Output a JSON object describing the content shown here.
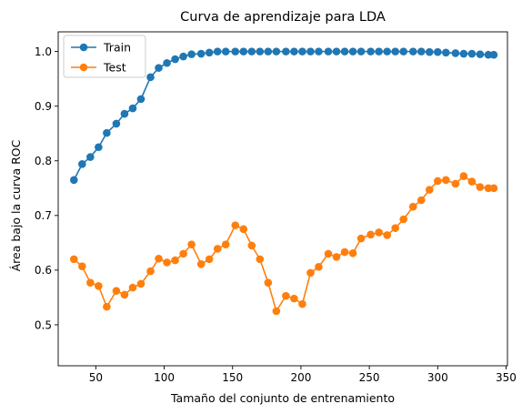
{
  "chart_data": {
    "type": "line",
    "title": "Curva de aprendizaje para LDA",
    "xlabel": "Tamaño del conjunto de entrenamiento",
    "ylabel": "Área bajo la curva ROC",
    "xlim": [
      22.5,
      351
    ],
    "ylim": [
      0.425,
      1.036
    ],
    "xticks": [
      50,
      100,
      150,
      200,
      250,
      300,
      350
    ],
    "yticks": [
      0.5,
      0.6,
      0.7,
      0.8,
      0.9,
      1.0
    ],
    "grid": false,
    "legend_position": "upper-left",
    "x": [
      34,
      40,
      46,
      52,
      58,
      65,
      71,
      77,
      83,
      90,
      96,
      102,
      108,
      114,
      120,
      127,
      133,
      139,
      145,
      152,
      158,
      164,
      170,
      176,
      182,
      189,
      195,
      201,
      207,
      213,
      220,
      226,
      232,
      238,
      244,
      251,
      257,
      263,
      269,
      275,
      282,
      288,
      294,
      300,
      306,
      313,
      319,
      325,
      331,
      337,
      341
    ],
    "series": [
      {
        "name": "Train",
        "color": "#1f77b4",
        "values": [
          0.765,
          0.794,
          0.807,
          0.825,
          0.851,
          0.868,
          0.886,
          0.896,
          0.913,
          0.953,
          0.97,
          0.979,
          0.986,
          0.991,
          0.995,
          0.996,
          0.998,
          1.0,
          1.0,
          1.0,
          1.0,
          1.0,
          1.0,
          1.0,
          1.0,
          1.0,
          1.0,
          1.0,
          1.0,
          1.0,
          1.0,
          1.0,
          1.0,
          1.0,
          1.0,
          1.0,
          1.0,
          1.0,
          1.0,
          1.0,
          1.0,
          1.0,
          0.999,
          0.999,
          0.998,
          0.997,
          0.996,
          0.996,
          0.995,
          0.994,
          0.994
        ]
      },
      {
        "name": "Test",
        "color": "#ff7f0e",
        "values": [
          0.62,
          0.607,
          0.577,
          0.571,
          0.533,
          0.562,
          0.555,
          0.568,
          0.575,
          0.598,
          0.621,
          0.614,
          0.618,
          0.63,
          0.647,
          0.611,
          0.62,
          0.639,
          0.647,
          0.682,
          0.675,
          0.645,
          0.62,
          0.577,
          0.525,
          0.553,
          0.548,
          0.538,
          0.595,
          0.606,
          0.63,
          0.624,
          0.633,
          0.631,
          0.658,
          0.665,
          0.669,
          0.664,
          0.677,
          0.693,
          0.716,
          0.728,
          0.747,
          0.763,
          0.765,
          0.758,
          0.772,
          0.762,
          0.752,
          0.75,
          0.75
        ]
      }
    ]
  }
}
